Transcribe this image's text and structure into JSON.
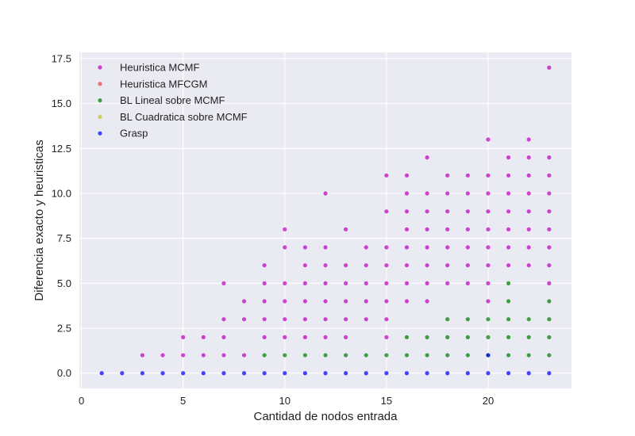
{
  "chart_data": {
    "type": "scatter",
    "xlabel": "Cantidad de nodos entrada",
    "ylabel": "Diferencia exacto y heuristicas",
    "xlim": [
      -0.1,
      24.1
    ],
    "ylim": [
      -0.85,
      17.85
    ],
    "xticks": [
      0,
      5,
      10,
      15,
      20
    ],
    "yticks": [
      0.0,
      2.5,
      5.0,
      7.5,
      10.0,
      12.5,
      15.0,
      17.5
    ],
    "ytick_labels": [
      "0.0",
      "2.5",
      "5.0",
      "7.5",
      "10.0",
      "12.5",
      "15.0",
      "17.5"
    ],
    "grid": true,
    "legend_position": "top-left",
    "background": "#eaeaf2",
    "series": [
      {
        "name": "Heuristica MCMF",
        "color": "#bf00bf",
        "points": [
          [
            3,
            1
          ],
          [
            4,
            1
          ],
          [
            5,
            1
          ],
          [
            5,
            2
          ],
          [
            6,
            1
          ],
          [
            6,
            2
          ],
          [
            7,
            1
          ],
          [
            7,
            2
          ],
          [
            7,
            3
          ],
          [
            7,
            5
          ],
          [
            8,
            1
          ],
          [
            8,
            3
          ],
          [
            8,
            4
          ],
          [
            9,
            2
          ],
          [
            9,
            3
          ],
          [
            9,
            4
          ],
          [
            9,
            5
          ],
          [
            9,
            6
          ],
          [
            10,
            2
          ],
          [
            10,
            3
          ],
          [
            10,
            4
          ],
          [
            10,
            5
          ],
          [
            10,
            7
          ],
          [
            10,
            8
          ],
          [
            11,
            2
          ],
          [
            11,
            3
          ],
          [
            11,
            4
          ],
          [
            11,
            5
          ],
          [
            11,
            6
          ],
          [
            11,
            7
          ],
          [
            12,
            2
          ],
          [
            12,
            3
          ],
          [
            12,
            4
          ],
          [
            12,
            5
          ],
          [
            12,
            6
          ],
          [
            12,
            7
          ],
          [
            12,
            10
          ],
          [
            13,
            2
          ],
          [
            13,
            3
          ],
          [
            13,
            4
          ],
          [
            13,
            5
          ],
          [
            13,
            6
          ],
          [
            13,
            8
          ],
          [
            14,
            3
          ],
          [
            14,
            4
          ],
          [
            14,
            5
          ],
          [
            14,
            6
          ],
          [
            14,
            7
          ],
          [
            15,
            2
          ],
          [
            15,
            3
          ],
          [
            15,
            4
          ],
          [
            15,
            5
          ],
          [
            15,
            6
          ],
          [
            15,
            7
          ],
          [
            15,
            9
          ],
          [
            15,
            11
          ],
          [
            16,
            4
          ],
          [
            16,
            5
          ],
          [
            16,
            6
          ],
          [
            16,
            7
          ],
          [
            16,
            8
          ],
          [
            16,
            9
          ],
          [
            16,
            10
          ],
          [
            16,
            11
          ],
          [
            17,
            4
          ],
          [
            17,
            5
          ],
          [
            17,
            6
          ],
          [
            17,
            7
          ],
          [
            17,
            8
          ],
          [
            17,
            9
          ],
          [
            17,
            10
          ],
          [
            17,
            12
          ],
          [
            18,
            5
          ],
          [
            18,
            6
          ],
          [
            18,
            7
          ],
          [
            18,
            8
          ],
          [
            18,
            9
          ],
          [
            18,
            10
          ],
          [
            18,
            11
          ],
          [
            19,
            5
          ],
          [
            19,
            6
          ],
          [
            19,
            7
          ],
          [
            19,
            8
          ],
          [
            19,
            9
          ],
          [
            19,
            10
          ],
          [
            19,
            11
          ],
          [
            20,
            4
          ],
          [
            20,
            5
          ],
          [
            20,
            6
          ],
          [
            20,
            7
          ],
          [
            20,
            8
          ],
          [
            20,
            9
          ],
          [
            20,
            10
          ],
          [
            20,
            11
          ],
          [
            20,
            13
          ],
          [
            21,
            6
          ],
          [
            21,
            7
          ],
          [
            21,
            8
          ],
          [
            21,
            9
          ],
          [
            21,
            10
          ],
          [
            21,
            11
          ],
          [
            21,
            12
          ],
          [
            22,
            6
          ],
          [
            22,
            7
          ],
          [
            22,
            8
          ],
          [
            22,
            9
          ],
          [
            22,
            10
          ],
          [
            22,
            11
          ],
          [
            22,
            12
          ],
          [
            22,
            13
          ],
          [
            23,
            5
          ],
          [
            23,
            6
          ],
          [
            23,
            7
          ],
          [
            23,
            8
          ],
          [
            23,
            9
          ],
          [
            23,
            10
          ],
          [
            23,
            11
          ],
          [
            23,
            12
          ],
          [
            23,
            17
          ]
        ]
      },
      {
        "name": "Heuristica MFCGM",
        "color": "#e8443a",
        "points": []
      },
      {
        "name": "BL Lineal sobre MCMF",
        "color": "#007f00",
        "points": [
          [
            9,
            1
          ],
          [
            10,
            1
          ],
          [
            11,
            1
          ],
          [
            12,
            1
          ],
          [
            13,
            1
          ],
          [
            14,
            1
          ],
          [
            15,
            1
          ],
          [
            16,
            1
          ],
          [
            16,
            2
          ],
          [
            17,
            1
          ],
          [
            17,
            2
          ],
          [
            18,
            1
          ],
          [
            18,
            2
          ],
          [
            18,
            3
          ],
          [
            19,
            1
          ],
          [
            19,
            2
          ],
          [
            19,
            3
          ],
          [
            20,
            1
          ],
          [
            20,
            2
          ],
          [
            20,
            3
          ],
          [
            21,
            1
          ],
          [
            21,
            2
          ],
          [
            21,
            3
          ],
          [
            21,
            4
          ],
          [
            21,
            5
          ],
          [
            22,
            1
          ],
          [
            22,
            2
          ],
          [
            22,
            3
          ],
          [
            23,
            1
          ],
          [
            23,
            2
          ],
          [
            23,
            3
          ],
          [
            23,
            4
          ]
        ]
      },
      {
        "name": "BL Cuadratica sobre MCMF",
        "color": "#c4c430",
        "points": []
      },
      {
        "name": "Grasp",
        "color": "#0000ff",
        "points": [
          [
            1,
            0
          ],
          [
            2,
            0
          ],
          [
            3,
            0
          ],
          [
            4,
            0
          ],
          [
            5,
            0
          ],
          [
            6,
            0
          ],
          [
            7,
            0
          ],
          [
            8,
            0
          ],
          [
            9,
            0
          ],
          [
            10,
            0
          ],
          [
            11,
            0
          ],
          [
            12,
            0
          ],
          [
            13,
            0
          ],
          [
            14,
            0
          ],
          [
            15,
            0
          ],
          [
            16,
            0
          ],
          [
            17,
            0
          ],
          [
            18,
            0
          ],
          [
            19,
            0
          ],
          [
            20,
            0
          ],
          [
            21,
            0
          ],
          [
            22,
            0
          ],
          [
            23,
            0
          ],
          [
            20,
            1
          ]
        ]
      }
    ]
  }
}
